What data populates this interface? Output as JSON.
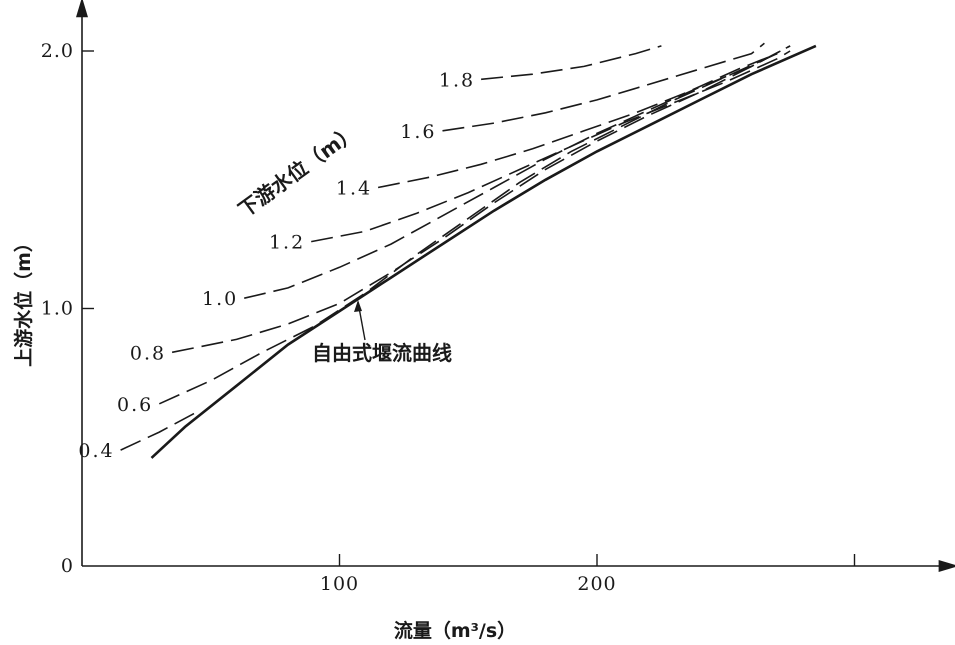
{
  "chart_data": {
    "type": "line",
    "title": "",
    "xlabel": "流量（m³/s）",
    "ylabel": "上游水位（m）",
    "xlim": [
      0,
      335
    ],
    "ylim": [
      0,
      2.1
    ],
    "x_ticks": [
      {
        "value": 100,
        "label": "100"
      },
      {
        "value": 200,
        "label": "200"
      },
      {
        "value": 300,
        "label": ""
      }
    ],
    "y_ticks": [
      {
        "value": 0,
        "label": "0"
      },
      {
        "value": 1.0,
        "label": "1.0"
      },
      {
        "value": 2.0,
        "label": "2.0"
      }
    ],
    "series_group_label": "下游水位（m）",
    "free_flow": {
      "name": "自由式堰流曲线",
      "style": "solid",
      "x": [
        27,
        40,
        60,
        80,
        100,
        120,
        140,
        160,
        180,
        200,
        220,
        240,
        260,
        285
      ],
      "y": [
        0.42,
        0.54,
        0.7,
        0.86,
        0.99,
        1.12,
        1.25,
        1.38,
        1.5,
        1.61,
        1.71,
        1.81,
        1.91,
        2.02
      ]
    },
    "series": [
      {
        "name": "0.4",
        "style": "dashed",
        "x": [
          15,
          30,
          45
        ],
        "y": [
          0.45,
          0.52,
          0.6
        ]
      },
      {
        "name": "0.6",
        "style": "dashed",
        "x": [
          30,
          50,
          70,
          90,
          110,
          130,
          150,
          170,
          190,
          210,
          230,
          250,
          270
        ],
        "y": [
          0.63,
          0.72,
          0.83,
          0.93,
          1.06,
          1.21,
          1.35,
          1.49,
          1.61,
          1.71,
          1.81,
          1.9,
          1.99
        ]
      },
      {
        "name": "0.8",
        "style": "dashed",
        "x": [
          35,
          60,
          80,
          100,
          120,
          140,
          160,
          180,
          200,
          220,
          240,
          260,
          275
        ],
        "y": [
          0.83,
          0.88,
          0.94,
          1.02,
          1.14,
          1.27,
          1.41,
          1.54,
          1.65,
          1.75,
          1.84,
          1.94,
          2.02
        ]
      },
      {
        "name": "1.0",
        "style": "dashed",
        "x": [
          63,
          80,
          100,
          120,
          140,
          160,
          180,
          200,
          220,
          240,
          260,
          275
        ],
        "y": [
          1.04,
          1.08,
          1.16,
          1.25,
          1.36,
          1.47,
          1.58,
          1.68,
          1.77,
          1.86,
          1.94,
          2.02
        ]
      },
      {
        "name": "1.2",
        "style": "dashed",
        "x": [
          89,
          110,
          130,
          150,
          170,
          190,
          210,
          230,
          250,
          270,
          275
        ],
        "y": [
          1.26,
          1.3,
          1.37,
          1.45,
          1.54,
          1.63,
          1.72,
          1.8,
          1.88,
          1.97,
          2.0
        ]
      },
      {
        "name": "1.4",
        "style": "dashed",
        "x": [
          115,
          135,
          155,
          175,
          195,
          215,
          235,
          255,
          270
        ],
        "y": [
          1.47,
          1.51,
          1.56,
          1.62,
          1.69,
          1.76,
          1.84,
          1.93,
          1.99
        ]
      },
      {
        "name": "1.6",
        "style": "dashed",
        "x": [
          140,
          160,
          180,
          200,
          220,
          240,
          260,
          265
        ],
        "y": [
          1.69,
          1.72,
          1.76,
          1.81,
          1.87,
          1.93,
          1.99,
          2.03
        ]
      },
      {
        "name": "1.8",
        "style": "dashed",
        "x": [
          155,
          175,
          195,
          215,
          225
        ],
        "y": [
          1.89,
          1.91,
          1.94,
          1.99,
          2.02
        ]
      }
    ],
    "grid": false,
    "legend": "none"
  }
}
